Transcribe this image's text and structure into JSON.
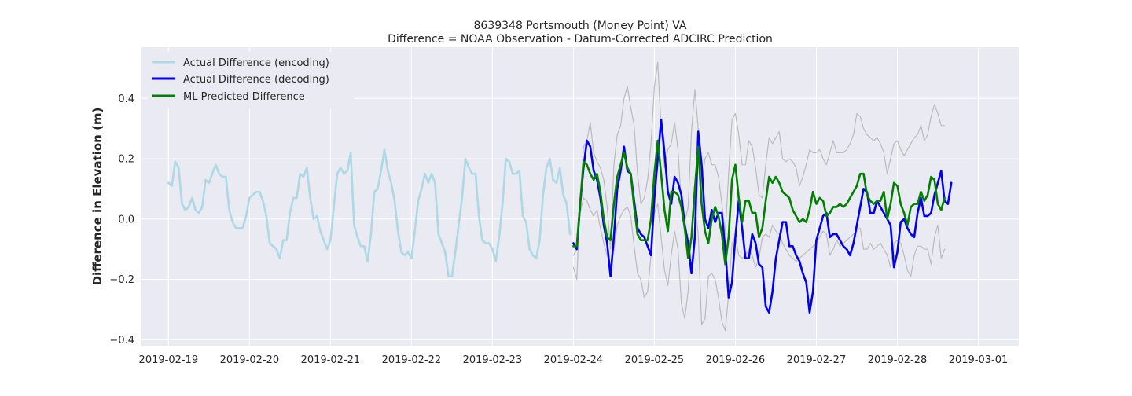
{
  "chart_data": {
    "type": "line",
    "title": "8639348 Portsmouth (Money Point) VA",
    "subtitle": "Difference = NOAA Observation - Datum-Corrected ADCIRC Prediction",
    "xlabel": "",
    "ylabel": "Difference in Elevation (m)",
    "xlim": [
      "2019-02-18 16:00",
      "2019-03-01 12:00"
    ],
    "ylim": [
      -0.42,
      0.57
    ],
    "x_ticks": [
      "2019-02-19",
      "2019-02-20",
      "2019-02-21",
      "2019-02-22",
      "2019-02-23",
      "2019-02-24",
      "2019-02-25",
      "2019-02-26",
      "2019-02-27",
      "2019-02-28",
      "2019-03-01"
    ],
    "y_ticks": [
      -0.4,
      -0.2,
      0.0,
      0.2,
      0.4
    ],
    "y_tick_labels": [
      "−0.4",
      "−0.2",
      "0.0",
      "0.2",
      "0.4"
    ],
    "grid": true,
    "legend_position": "top-left",
    "background_color": "#eaeaf2",
    "sampling_interval_hours": 1,
    "series": [
      {
        "name": "Actual Difference (encoding)",
        "color": "#add8e6",
        "start": "2019-02-19 00:00",
        "values": [
          0.12,
          0.11,
          0.19,
          0.17,
          0.05,
          0.03,
          0.04,
          0.07,
          0.03,
          0.02,
          0.04,
          0.13,
          0.12,
          0.15,
          0.18,
          0.15,
          0.14,
          0.14,
          0.03,
          -0.01,
          -0.03,
          -0.03,
          -0.03,
          0.01,
          0.07,
          0.08,
          0.09,
          0.09,
          0.06,
          0.01,
          -0.08,
          -0.09,
          -0.1,
          -0.13,
          -0.07,
          -0.07,
          0.02,
          0.07,
          0.07,
          0.15,
          0.14,
          0.17,
          0.07,
          0.0,
          0.01,
          -0.04,
          -0.07,
          -0.1,
          -0.07,
          0.04,
          0.15,
          0.17,
          0.15,
          0.16,
          0.22,
          -0.02,
          -0.06,
          -0.09,
          -0.09,
          -0.14,
          -0.05,
          0.09,
          0.1,
          0.16,
          0.23,
          0.16,
          0.12,
          0.06,
          -0.04,
          -0.11,
          -0.12,
          -0.11,
          -0.13,
          -0.04,
          0.06,
          0.1,
          0.15,
          0.12,
          0.15,
          0.12,
          -0.05,
          -0.08,
          -0.11,
          -0.19,
          -0.19,
          -0.11,
          -0.02,
          0.07,
          0.2,
          0.17,
          0.15,
          0.15,
          0.01,
          -0.07,
          -0.08,
          -0.08,
          -0.1,
          -0.14,
          -0.06,
          0.05,
          0.2,
          0.19,
          0.15,
          0.15,
          0.16,
          0.01,
          -0.01,
          -0.1,
          -0.12,
          -0.13,
          -0.07,
          0.08,
          0.17,
          0.2,
          0.13,
          0.12,
          0.17,
          0.08,
          0.05,
          -0.05
        ]
      },
      {
        "name": "Actual Difference (decoding)",
        "color": "#0000ee",
        "start": "2019-02-24 00:00",
        "values": [
          -0.08,
          -0.1,
          0.05,
          0.17,
          0.26,
          0.24,
          0.16,
          0.13,
          0.07,
          -0.02,
          -0.08,
          -0.19,
          -0.06,
          0.1,
          0.16,
          0.24,
          0.16,
          0.15,
          0.06,
          -0.03,
          -0.05,
          -0.06,
          -0.09,
          -0.12,
          0.07,
          0.2,
          0.33,
          0.22,
          0.09,
          0.05,
          0.14,
          0.12,
          0.08,
          -0.02,
          -0.08,
          -0.18,
          -0.06,
          0.29,
          0.18,
          0.0,
          -0.03,
          0.03,
          -0.01,
          0.02,
          0.02,
          -0.1,
          -0.26,
          -0.21,
          -0.06,
          0.06,
          -0.03,
          -0.13,
          -0.13,
          -0.05,
          -0.08,
          -0.15,
          -0.16,
          -0.29,
          -0.31,
          -0.24,
          -0.13,
          -0.07,
          -0.01,
          -0.01,
          -0.09,
          -0.09,
          -0.12,
          -0.14,
          -0.18,
          -0.21,
          -0.31,
          -0.24,
          -0.07,
          -0.03,
          0.01,
          0.02,
          -0.06,
          -0.05,
          -0.05,
          -0.07,
          -0.09,
          -0.1,
          -0.12,
          -0.08,
          -0.02,
          0.04,
          0.1,
          0.09,
          0.02,
          0.02,
          0.06,
          0.04,
          0.02,
          0.0,
          -0.02,
          -0.16,
          -0.11,
          -0.01,
          0.0,
          -0.03,
          -0.05,
          -0.06,
          0.02,
          0.07,
          0.01,
          0.01,
          0.02,
          0.08,
          0.12,
          0.16,
          0.06,
          0.05,
          0.12
        ]
      },
      {
        "name": "ML Predicted Difference",
        "color": "#008000",
        "start": "2019-02-24 00:00",
        "values": [
          -0.09,
          -0.09,
          0.05,
          0.19,
          0.18,
          0.15,
          0.13,
          0.15,
          0.09,
          0.0,
          -0.06,
          -0.07,
          0.05,
          0.14,
          0.18,
          0.22,
          0.17,
          0.15,
          0.04,
          -0.05,
          -0.07,
          -0.07,
          -0.07,
          0.0,
          0.15,
          0.26,
          0.15,
          0.03,
          -0.04,
          0.09,
          0.09,
          0.08,
          0.04,
          -0.03,
          -0.13,
          -0.06,
          0.1,
          0.24,
          0.05,
          -0.04,
          -0.08,
          0.0,
          0.04,
          0.01,
          -0.05,
          -0.15,
          -0.06,
          0.13,
          0.18,
          0.07,
          -0.01,
          0.06,
          0.06,
          0.02,
          0.02,
          -0.06,
          -0.03,
          0.06,
          0.14,
          0.12,
          0.14,
          0.12,
          0.09,
          0.08,
          0.07,
          0.03,
          0.01,
          -0.01,
          0.0,
          -0.01,
          0.03,
          0.09,
          0.05,
          0.07,
          0.06,
          0.01,
          0.02,
          0.04,
          0.04,
          0.05,
          0.04,
          0.05,
          0.07,
          0.09,
          0.11,
          0.15,
          0.15,
          0.08,
          0.06,
          0.05,
          0.06,
          0.06,
          0.09,
          0.0,
          0.05,
          0.12,
          0.11,
          0.05,
          0.02,
          -0.02,
          0.04,
          0.05,
          0.05,
          0.09,
          0.06,
          0.08,
          0.14,
          0.13,
          0.05,
          0.03,
          0.07
        ]
      },
      {
        "name": "",
        "color": "#bbbbbb",
        "start": "2019-02-24 00:00",
        "values": [
          -0.16,
          -0.2,
          0.05,
          0.24,
          0.26,
          0.32,
          0.22,
          0.19,
          0.17,
          0.13,
          0.04,
          -0.1,
          0.18,
          0.28,
          0.31,
          0.4,
          0.44,
          0.37,
          0.31,
          0.15,
          0.05,
          0.07,
          0.13,
          0.25,
          0.44,
          0.52,
          0.3,
          0.17,
          0.23,
          0.25,
          0.32,
          0.23,
          0.05,
          -0.01,
          0.04,
          0.29,
          0.43,
          0.3,
          0.12,
          0.2,
          0.22,
          0.18,
          0.18,
          0.14,
          0.05,
          -0.05,
          0.15,
          0.33,
          0.35,
          0.28,
          0.18,
          0.18,
          0.26,
          0.24,
          0.17,
          0.08,
          0.07,
          0.18,
          0.27,
          0.25,
          0.27,
          0.29,
          0.2,
          0.19,
          0.2,
          0.19,
          0.17,
          0.11,
          0.14,
          0.18,
          0.23,
          0.22,
          0.22,
          0.23,
          0.2,
          0.18,
          0.22,
          0.26,
          0.22,
          0.22,
          0.22,
          0.23,
          0.25,
          0.28,
          0.35,
          0.34,
          0.3,
          0.28,
          0.27,
          0.26,
          0.27,
          0.25,
          0.22,
          0.15,
          0.2,
          0.25,
          0.26,
          0.23,
          0.21,
          0.23,
          0.25,
          0.27,
          0.28,
          0.31,
          0.26,
          0.28,
          0.34,
          0.38,
          0.35,
          0.31,
          0.31
        ]
      },
      {
        "name": "",
        "color": "#bbbbbb",
        "start": "2019-02-24 00:00",
        "values": [
          -0.12,
          -0.1,
          0.02,
          0.07,
          0.06,
          0.03,
          0.01,
          0.03,
          -0.03,
          -0.08,
          -0.12,
          -0.16,
          -0.1,
          -0.02,
          0.01,
          0.03,
          0.04,
          0.01,
          -0.09,
          -0.18,
          -0.2,
          -0.26,
          -0.24,
          -0.12,
          0.02,
          0.05,
          -0.06,
          -0.17,
          -0.22,
          -0.12,
          -0.04,
          -0.1,
          -0.28,
          -0.33,
          -0.24,
          -0.05,
          0.05,
          -0.05,
          -0.35,
          -0.33,
          -0.19,
          -0.18,
          -0.2,
          -0.26,
          -0.34,
          -0.37,
          -0.25,
          -0.08,
          -0.06,
          -0.12,
          -0.13,
          -0.12,
          -0.1,
          -0.12,
          -0.16,
          -0.13,
          -0.06,
          -0.05,
          -0.06,
          -0.02,
          -0.04,
          -0.05,
          -0.08,
          -0.1,
          -0.12,
          -0.13,
          -0.14,
          -0.13,
          -0.12,
          -0.11,
          -0.1,
          -0.09,
          -0.08,
          -0.06,
          -0.04,
          -0.05,
          -0.12,
          -0.1,
          -0.07,
          -0.09,
          -0.08,
          -0.07,
          -0.06,
          -0.05,
          -0.04,
          -0.03,
          -0.1,
          -0.1,
          -0.08,
          -0.1,
          -0.09,
          -0.08,
          -0.1,
          -0.12,
          -0.16,
          -0.08,
          -0.07,
          -0.08,
          -0.12,
          -0.17,
          -0.19,
          -0.12,
          -0.09,
          -0.09,
          -0.1,
          -0.1,
          -0.15,
          -0.06,
          -0.02,
          -0.13,
          -0.1
        ]
      }
    ]
  }
}
